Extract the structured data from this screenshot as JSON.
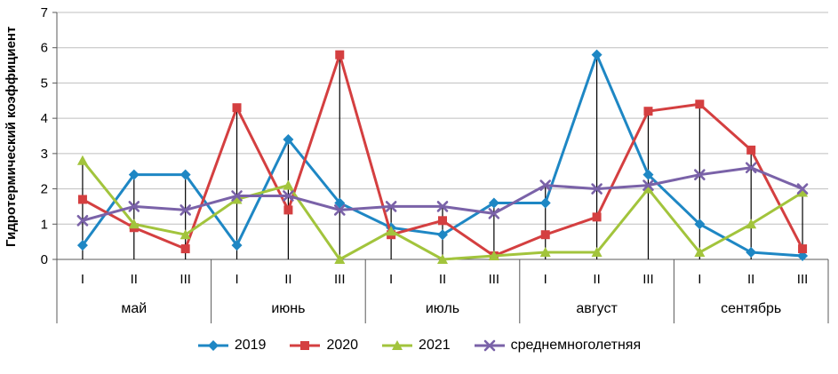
{
  "chart_data": {
    "type": "line",
    "title": "",
    "xlabel": "",
    "ylabel": "Гидротермический коэффициент",
    "ylim": [
      0,
      7
    ],
    "y_ticks": [
      0,
      1,
      2,
      3,
      4,
      5,
      6,
      7
    ],
    "grid": true,
    "drop_lines": true,
    "legend_position": "bottom",
    "grid_color": "#BFBFBF",
    "axis_color": "#595959",
    "drop_line_color": "#000000",
    "months": [
      {
        "label": "май",
        "decades": [
          "I",
          "II",
          "III"
        ]
      },
      {
        "label": "июнь",
        "decades": [
          "I",
          "II",
          "III"
        ]
      },
      {
        "label": "июль",
        "decades": [
          "I",
          "II",
          "III"
        ]
      },
      {
        "label": "август",
        "decades": [
          "I",
          "II",
          "III"
        ]
      },
      {
        "label": "сентябрь",
        "decades": [
          "I",
          "II",
          "III"
        ]
      }
    ],
    "categories": [
      "май I",
      "май II",
      "май III",
      "июнь I",
      "июнь II",
      "июнь III",
      "июль I",
      "июль II",
      "июль III",
      "август I",
      "август II",
      "август III",
      "сентябрь I",
      "сентябрь II",
      "сентябрь III"
    ],
    "series": [
      {
        "name": "2019",
        "color": "#1E87C4",
        "marker": "diamond",
        "values": [
          0.4,
          2.4,
          2.4,
          0.4,
          3.4,
          1.6,
          0.9,
          0.7,
          1.6,
          1.6,
          5.8,
          2.4,
          1.0,
          0.2,
          0.1
        ]
      },
      {
        "name": "2020",
        "color": "#D43F40",
        "marker": "square",
        "values": [
          1.7,
          0.9,
          0.3,
          4.3,
          1.4,
          5.8,
          0.7,
          1.1,
          0.1,
          0.7,
          1.2,
          4.2,
          4.4,
          3.1,
          0.3
        ]
      },
      {
        "name": "2021",
        "color": "#A2C43C",
        "marker": "triangle",
        "values": [
          2.8,
          1.0,
          0.7,
          1.7,
          2.1,
          0.0,
          0.8,
          0.0,
          0.1,
          0.2,
          0.2,
          2.0,
          0.2,
          1.0,
          1.9
        ]
      },
      {
        "name": "среднемноголетняя",
        "color": "#7A62A8",
        "marker": "x",
        "values": [
          1.1,
          1.5,
          1.4,
          1.8,
          1.8,
          1.4,
          1.5,
          1.5,
          1.3,
          2.1,
          2.0,
          2.1,
          2.4,
          2.6,
          2.0
        ]
      }
    ]
  }
}
